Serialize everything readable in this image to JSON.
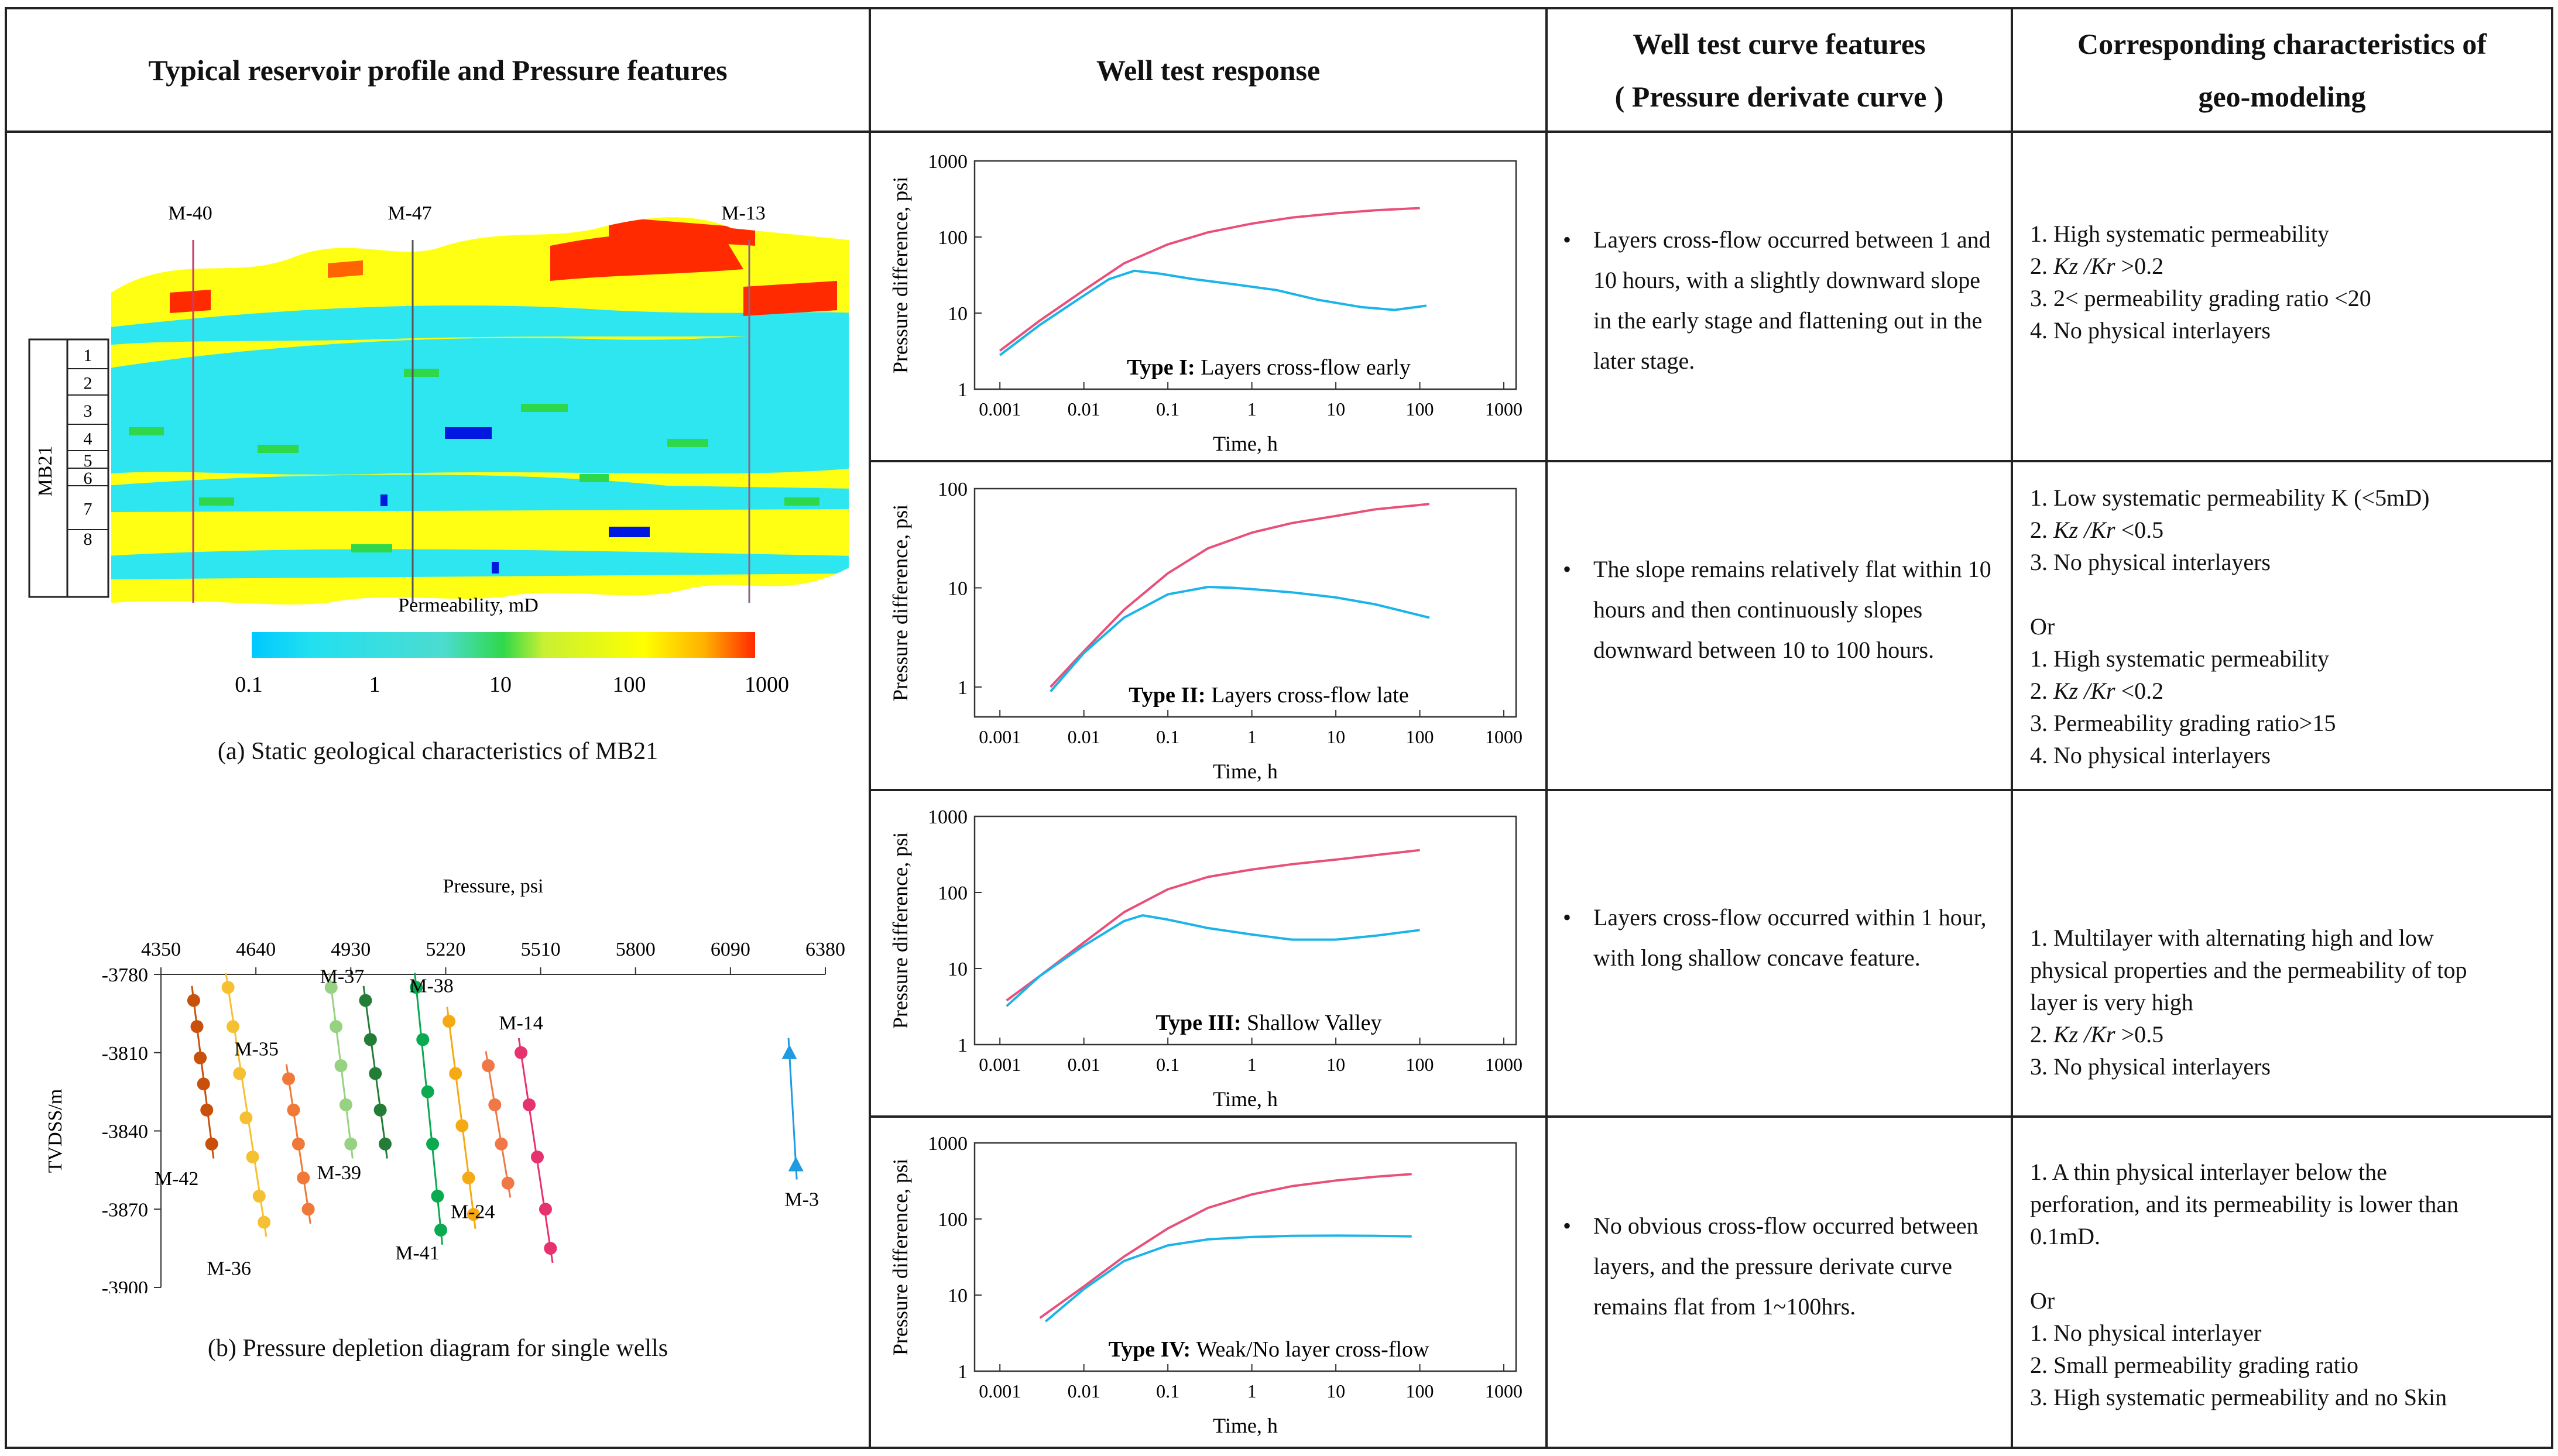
{
  "headers": {
    "col1": "Typical reservoir profile and Pressure features",
    "col2": "Well test response",
    "col3_line1": "Well test curve features",
    "col3_line2": "( Pressure derivate curve )",
    "col4_line1": "Corresponding characteristics of",
    "col4_line2": "geo-modeling"
  },
  "colors": {
    "border": "#222222",
    "pressure_curve": "#e8507a",
    "derivative_curve": "#1ab4e8"
  },
  "profile": {
    "caption": "(a) Static geological characteristics of MB21",
    "zone_label": "MB21",
    "layers": [
      "1",
      "2",
      "3",
      "4",
      "5",
      "6",
      "7",
      "8"
    ],
    "wells": [
      "M-40",
      "M-47",
      "M-13"
    ],
    "colorbar_title": "Permeability, mD",
    "colorbar_ticks": [
      "0.1",
      "1",
      "10",
      "100",
      "1000"
    ]
  },
  "depletion": {
    "caption": "(b) Pressure depletion diagram for single wells",
    "chart_data": {
      "type": "scatter",
      "title": "",
      "xlabel": "Pressure, psi",
      "ylabel": "TVDSS/m",
      "xlim": [
        4350,
        6380
      ],
      "ylim": [
        -3900,
        -3780
      ],
      "x_ticks": [
        "4350",
        "4640",
        "4930",
        "5220",
        "5510",
        "5800",
        "6090",
        "6380"
      ],
      "y_ticks": [
        "-3780",
        "-3810",
        "-3840",
        "-3870",
        "-3900"
      ],
      "series": [
        {
          "name": "M-42",
          "color": "#c8500a",
          "points": [
            [
              4450,
              -3790
            ],
            [
              4460,
              -3800
            ],
            [
              4470,
              -3812
            ],
            [
              4480,
              -3822
            ],
            [
              4490,
              -3832
            ],
            [
              4505,
              -3845
            ]
          ]
        },
        {
          "name": "M-36",
          "color": "#f5c032",
          "points": [
            [
              4555,
              -3785
            ],
            [
              4570,
              -3800
            ],
            [
              4590,
              -3818
            ],
            [
              4610,
              -3835
            ],
            [
              4630,
              -3850
            ],
            [
              4650,
              -3865
            ],
            [
              4665,
              -3875
            ]
          ]
        },
        {
          "name": "M-35",
          "color": "#f07838",
          "points": [
            [
              4740,
              -3820
            ],
            [
              4755,
              -3832
            ],
            [
              4770,
              -3845
            ],
            [
              4785,
              -3858
            ],
            [
              4800,
              -3870
            ]
          ]
        },
        {
          "name": "M-39",
          "color": "#96d282",
          "points": [
            [
              4870,
              -3785
            ],
            [
              4885,
              -3800
            ],
            [
              4900,
              -3815
            ],
            [
              4915,
              -3830
            ],
            [
              4930,
              -3845
            ]
          ]
        },
        {
          "name": "M-37",
          "color": "#237d37",
          "points": [
            [
              4975,
              -3790
            ],
            [
              4990,
              -3805
            ],
            [
              5005,
              -3818
            ],
            [
              5020,
              -3832
            ],
            [
              5035,
              -3845
            ]
          ]
        },
        {
          "name": "M-41",
          "color": "#0aaa50",
          "points": [
            [
              5130,
              -3785
            ],
            [
              5150,
              -3805
            ],
            [
              5165,
              -3825
            ],
            [
              5180,
              -3845
            ],
            [
              5195,
              -3865
            ],
            [
              5205,
              -3878
            ]
          ]
        },
        {
          "name": "M-38",
          "color": "#f5aa14",
          "points": [
            [
              5230,
              -3798
            ],
            [
              5250,
              -3818
            ],
            [
              5270,
              -3838
            ],
            [
              5290,
              -3858
            ],
            [
              5305,
              -3872
            ]
          ]
        },
        {
          "name": "M-24",
          "color": "#f07846",
          "points": [
            [
              5350,
              -3815
            ],
            [
              5370,
              -3830
            ],
            [
              5390,
              -3845
            ],
            [
              5410,
              -3860
            ]
          ]
        },
        {
          "name": "M-14",
          "color": "#e6326e",
          "points": [
            [
              5450,
              -3810
            ],
            [
              5475,
              -3830
            ],
            [
              5500,
              -3850
            ],
            [
              5525,
              -3870
            ],
            [
              5540,
              -3885
            ]
          ]
        },
        {
          "name": "M-3",
          "color": "#1e9be1",
          "points": [
            [
              6270,
              -3810
            ],
            [
              6290,
              -3853
            ]
          ]
        }
      ]
    }
  },
  "well_tests": [
    {
      "label_bold": "Type I:",
      "label_rest": " Layers cross-flow early",
      "ylabel": "Pressure difference, psi",
      "xlabel": "Time, h",
      "y_ticks": [
        "1",
        "10",
        "100",
        "1000"
      ],
      "x_ticks": [
        "0.001",
        "0.01",
        "0.1",
        "1",
        "10",
        "100",
        "1000"
      ],
      "chart_data": {
        "type": "line",
        "xscale": "log",
        "yscale": "log",
        "xlim": [
          0.0005,
          1400
        ],
        "ylim": [
          1,
          1000
        ],
        "series": [
          {
            "name": "pressure difference",
            "points": [
              [
                0.001,
                3.2
              ],
              [
                0.003,
                8
              ],
              [
                0.01,
                20
              ],
              [
                0.03,
                45
              ],
              [
                0.1,
                80
              ],
              [
                0.3,
                115
              ],
              [
                1,
                150
              ],
              [
                3,
                180
              ],
              [
                10,
                205
              ],
              [
                30,
                225
              ],
              [
                100,
                240
              ]
            ]
          },
          {
            "name": "pressure derivative",
            "points": [
              [
                0.001,
                2.8
              ],
              [
                0.003,
                7
              ],
              [
                0.01,
                17
              ],
              [
                0.02,
                28
              ],
              [
                0.04,
                36
              ],
              [
                0.08,
                33
              ],
              [
                0.2,
                28
              ],
              [
                0.6,
                24
              ],
              [
                2,
                20
              ],
              [
                6,
                15
              ],
              [
                20,
                12
              ],
              [
                50,
                11
              ],
              [
                120,
                12.5
              ]
            ]
          }
        ]
      },
      "features": "Layers cross-flow occurred between 1 and 10 hours, with a slightly downward slope in the early stage and flattening out in the later stage.",
      "geo": [
        "1. High systematic permeability",
        "2. Kz /Kr >0.2",
        "3. 2< permeability grading ratio <20",
        "4. No physical interlayers"
      ]
    },
    {
      "label_bold": "Type II:",
      "label_rest": " Layers cross-flow late",
      "ylabel": "Pressure difference, psi",
      "xlabel": "Time, h",
      "y_ticks": [
        "1",
        "10",
        "100"
      ],
      "x_ticks": [
        "0.001",
        "0.01",
        "0.1",
        "1",
        "10",
        "100",
        "1000"
      ],
      "chart_data": {
        "type": "line",
        "xscale": "log",
        "yscale": "log",
        "xlim": [
          0.0005,
          1400
        ],
        "ylim": [
          0.5,
          100
        ],
        "series": [
          {
            "name": "pressure difference",
            "points": [
              [
                0.004,
                1
              ],
              [
                0.01,
                2.3
              ],
              [
                0.03,
                6
              ],
              [
                0.1,
                14
              ],
              [
                0.3,
                25
              ],
              [
                1,
                36
              ],
              [
                3,
                45
              ],
              [
                10,
                53
              ],
              [
                30,
                62
              ],
              [
                130,
                70
              ]
            ]
          },
          {
            "name": "pressure derivative",
            "points": [
              [
                0.004,
                0.9
              ],
              [
                0.01,
                2.2
              ],
              [
                0.03,
                5
              ],
              [
                0.1,
                8.6
              ],
              [
                0.3,
                10.2
              ],
              [
                0.6,
                10
              ],
              [
                1,
                9.7
              ],
              [
                3,
                9
              ],
              [
                10,
                8
              ],
              [
                30,
                6.8
              ],
              [
                130,
                5
              ]
            ]
          }
        ]
      },
      "features": "The slope remains relatively flat within 10 hours and then continuously slopes downward between 10 to 100 hours.",
      "geo": [
        "1. Low systematic permeability K (<5mD)",
        "2. Kz /Kr <0.5",
        "3. No physical interlayers",
        "",
        "Or",
        "1. High systematic permeability",
        "2. Kz /Kr <0.2",
        "3. Permeability grading ratio>15",
        "4. No physical interlayers"
      ]
    },
    {
      "label_bold": "Type III:",
      "label_rest": " Shallow Valley",
      "ylabel": "Pressure difference, psi",
      "xlabel": "Time, h",
      "y_ticks": [
        "1",
        "10",
        "100",
        "1000"
      ],
      "x_ticks": [
        "0.001",
        "0.01",
        "0.1",
        "1",
        "10",
        "100",
        "1000"
      ],
      "chart_data": {
        "type": "line",
        "xscale": "log",
        "yscale": "log",
        "xlim": [
          0.0005,
          1400
        ],
        "ylim": [
          1,
          1000
        ],
        "series": [
          {
            "name": "pressure difference",
            "points": [
              [
                0.0012,
                3.8
              ],
              [
                0.003,
                8
              ],
              [
                0.01,
                22
              ],
              [
                0.03,
                55
              ],
              [
                0.1,
                110
              ],
              [
                0.3,
                160
              ],
              [
                1,
                200
              ],
              [
                3,
                235
              ],
              [
                10,
                270
              ],
              [
                30,
                310
              ],
              [
                100,
                360
              ]
            ]
          },
          {
            "name": "pressure derivative",
            "points": [
              [
                0.0012,
                3.2
              ],
              [
                0.003,
                8
              ],
              [
                0.01,
                20
              ],
              [
                0.03,
                42
              ],
              [
                0.05,
                50
              ],
              [
                0.1,
                44
              ],
              [
                0.3,
                34
              ],
              [
                1,
                28
              ],
              [
                3,
                24
              ],
              [
                10,
                24
              ],
              [
                30,
                27
              ],
              [
                100,
                32
              ]
            ]
          }
        ]
      },
      "features": "Layers cross-flow occurred within 1 hour, with long shallow concave feature.",
      "geo": [
        "1. Multilayer with alternating high and low",
        "physical properties and the permeability of top",
        "layer is very high",
        "2. Kz /Kr >0.5",
        "3. No physical interlayers"
      ]
    },
    {
      "label_bold": "Type IV:",
      "label_rest": " Weak/No layer cross-flow",
      "ylabel": "Pressure difference, psi",
      "xlabel": "Time, h",
      "y_ticks": [
        "1",
        "10",
        "100",
        "1000"
      ],
      "x_ticks": [
        "0.001",
        "0.01",
        "0.1",
        "1",
        "10",
        "100",
        "1000"
      ],
      "chart_data": {
        "type": "line",
        "xscale": "log",
        "yscale": "log",
        "xlim": [
          0.0005,
          1400
        ],
        "ylim": [
          1,
          1000
        ],
        "series": [
          {
            "name": "pressure difference",
            "points": [
              [
                0.003,
                5
              ],
              [
                0.01,
                13
              ],
              [
                0.03,
                32
              ],
              [
                0.1,
                75
              ],
              [
                0.3,
                140
              ],
              [
                1,
                210
              ],
              [
                3,
                270
              ],
              [
                10,
                320
              ],
              [
                30,
                360
              ],
              [
                80,
                390
              ]
            ]
          },
          {
            "name": "pressure derivative",
            "points": [
              [
                0.0035,
                4.5
              ],
              [
                0.01,
                12
              ],
              [
                0.03,
                28
              ],
              [
                0.1,
                45
              ],
              [
                0.3,
                54
              ],
              [
                1,
                58
              ],
              [
                3,
                60
              ],
              [
                10,
                60.5
              ],
              [
                30,
                60
              ],
              [
                80,
                59
              ]
            ]
          }
        ]
      },
      "features": "No obvious cross-flow occurred between layers, and the pressure derivate curve remains flat from 1~100hrs.",
      "geo": [
        "1. A thin physical interlayer below the",
        "perforation, and its permeability is lower than",
        "0.1mD.",
        "",
        "Or",
        "1. No physical interlayer",
        "2. Small permeability grading ratio",
        "3. High systematic permeability and no Skin"
      ]
    }
  ]
}
